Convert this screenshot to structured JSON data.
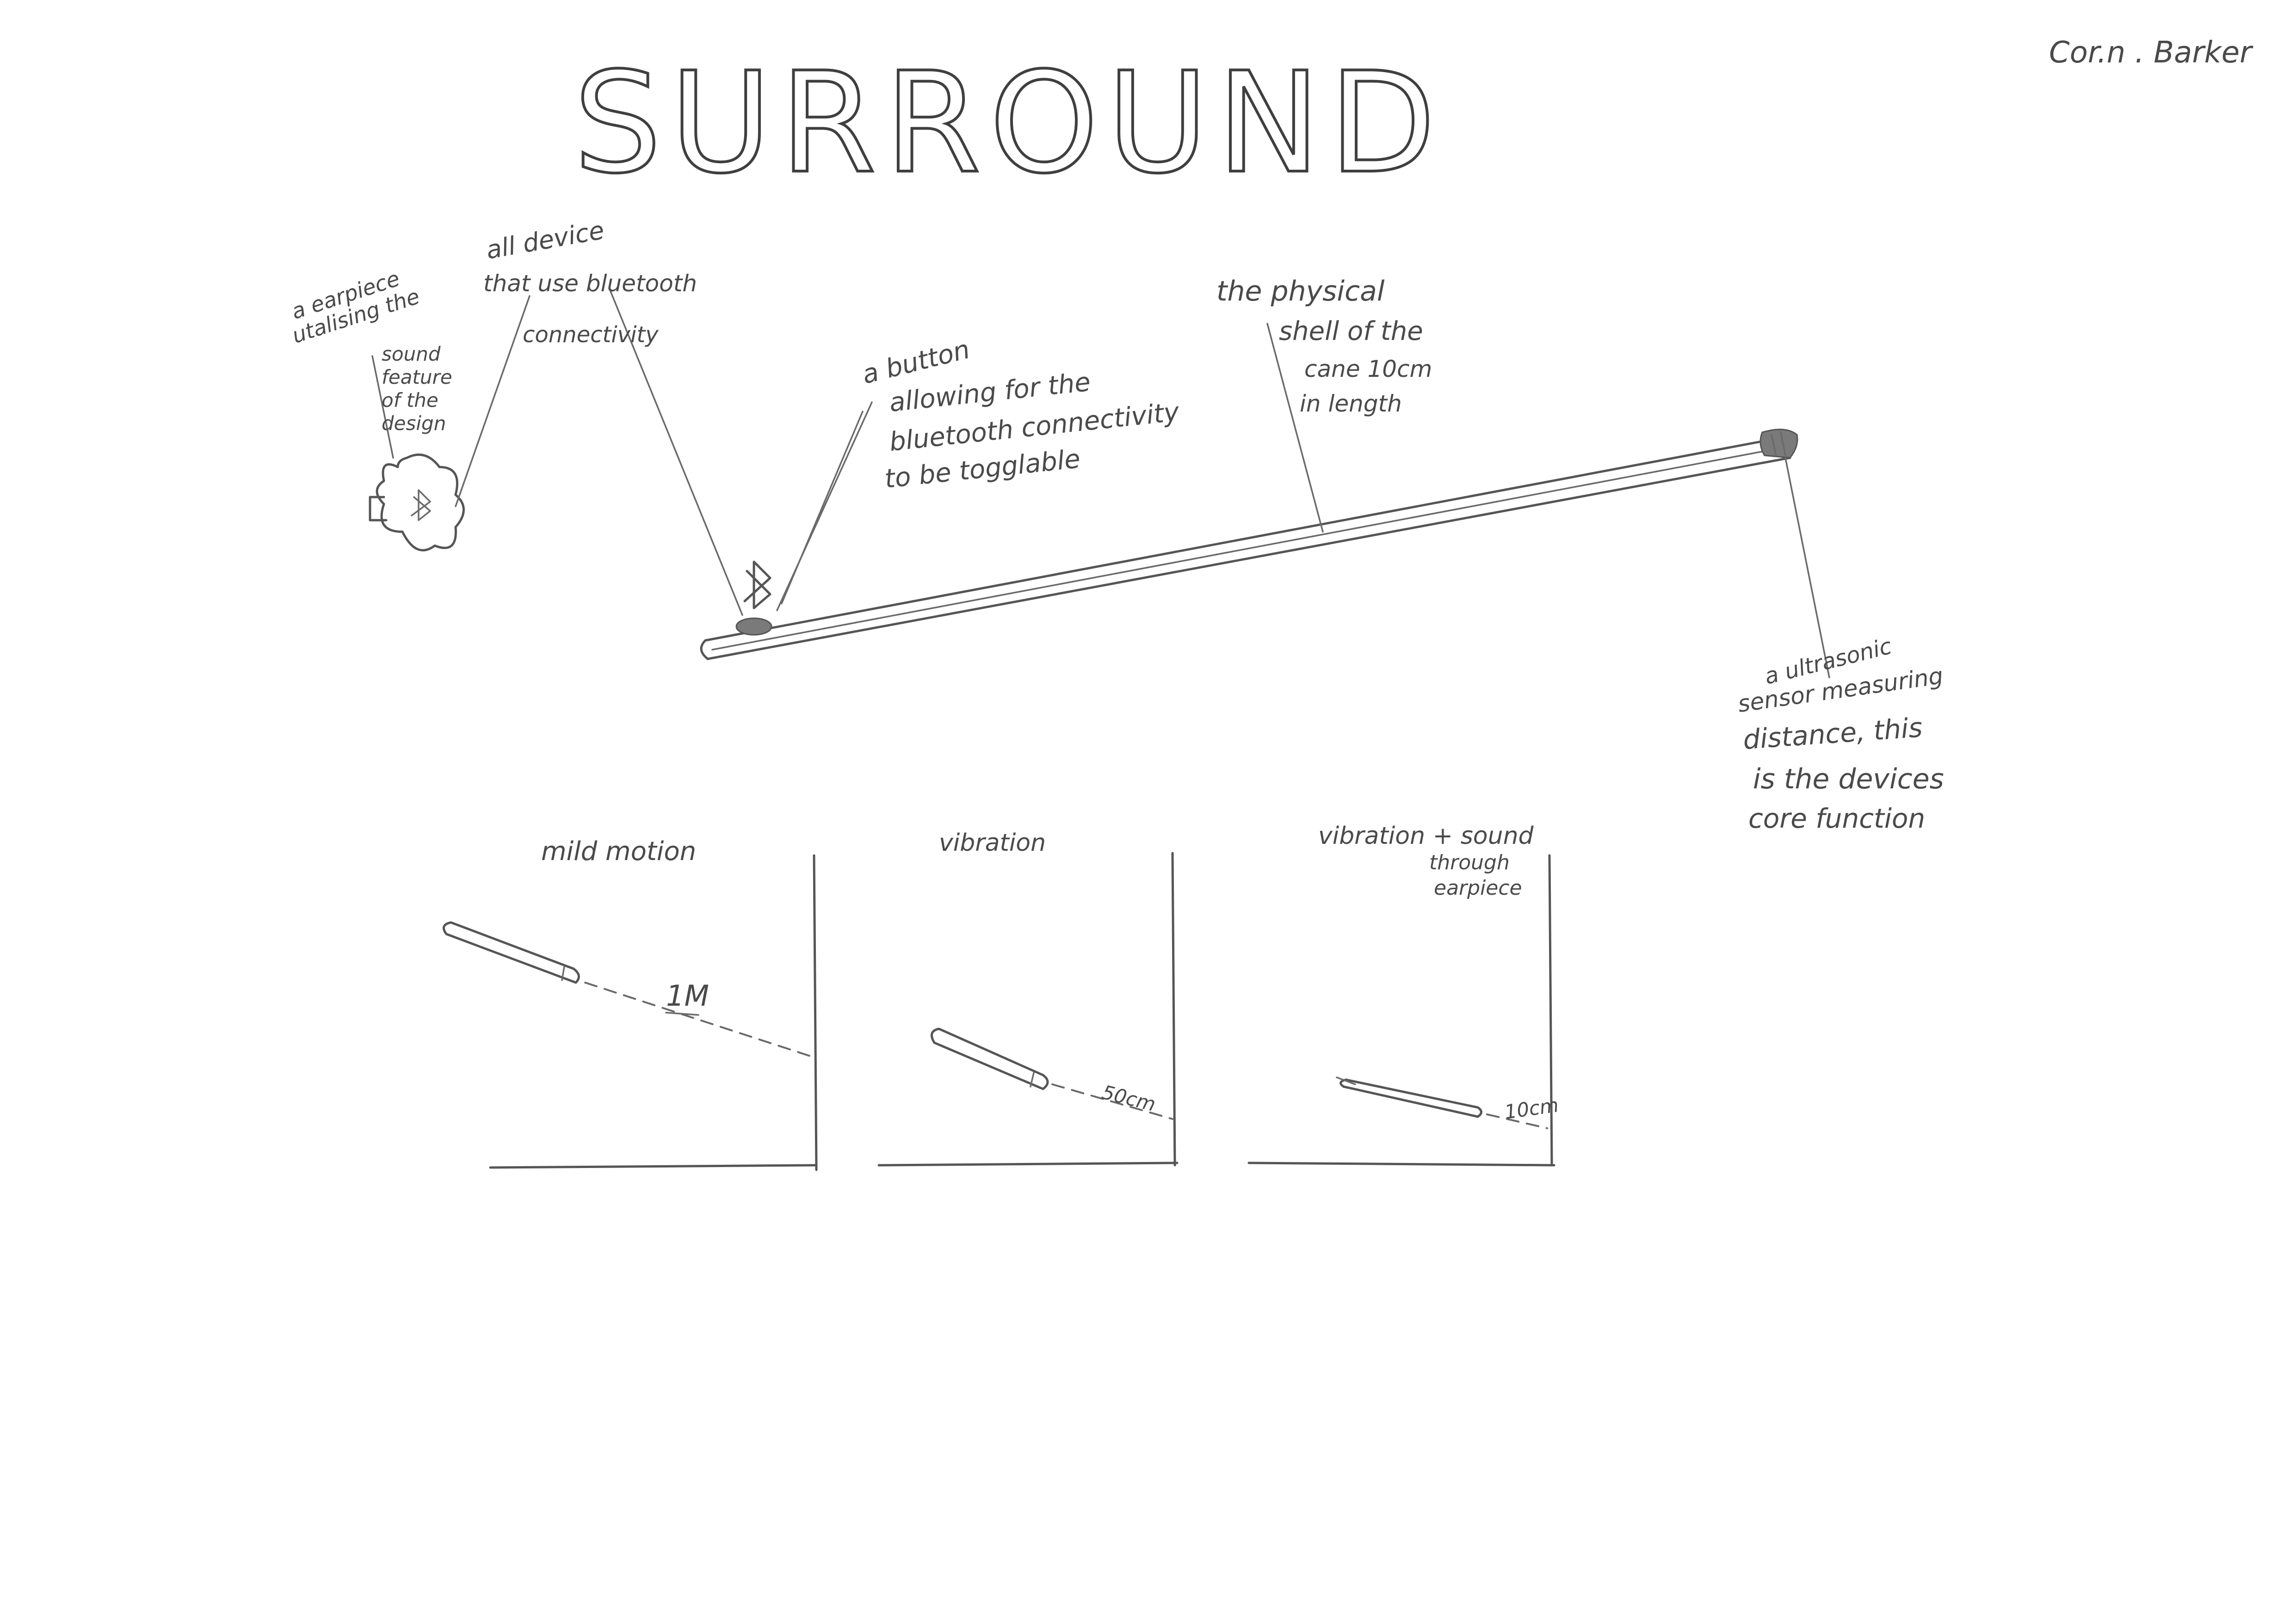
{
  "title": "SURROUND",
  "author": "Cor.n . Barker",
  "annotations": {
    "earpiece": [
      "a earpiece",
      "utalising the",
      "sound",
      "feature",
      "of the",
      "design"
    ],
    "bluetooth_devices": [
      "all device",
      "that use bluetooth",
      "connectivity"
    ],
    "button": [
      "a button",
      "allowing for the",
      "bluetooth connectivity",
      "to be togglable"
    ],
    "shell": [
      "the physical",
      "shell of the",
      "cane 10cm",
      "in length"
    ],
    "sensor": [
      "a ultrasonic",
      "sensor measuring",
      "distance, this",
      "is the devices",
      "core function"
    ]
  },
  "modes": [
    {
      "label": [
        "mild motion"
      ],
      "distance": "1M"
    },
    {
      "label": [
        "vibration"
      ],
      "distance": "50cm"
    },
    {
      "label": [
        "vibration + sound",
        "through",
        "earpiece"
      ],
      "distance": "10cm"
    }
  ],
  "icons": {
    "earpiece": "earpiece-icon",
    "bluetooth": "bluetooth-icon",
    "button": "toggle-button-icon",
    "sensor": "ultrasonic-sensor-icon"
  },
  "colors": {
    "pencil": "#555555",
    "paper": "#ffffff"
  }
}
